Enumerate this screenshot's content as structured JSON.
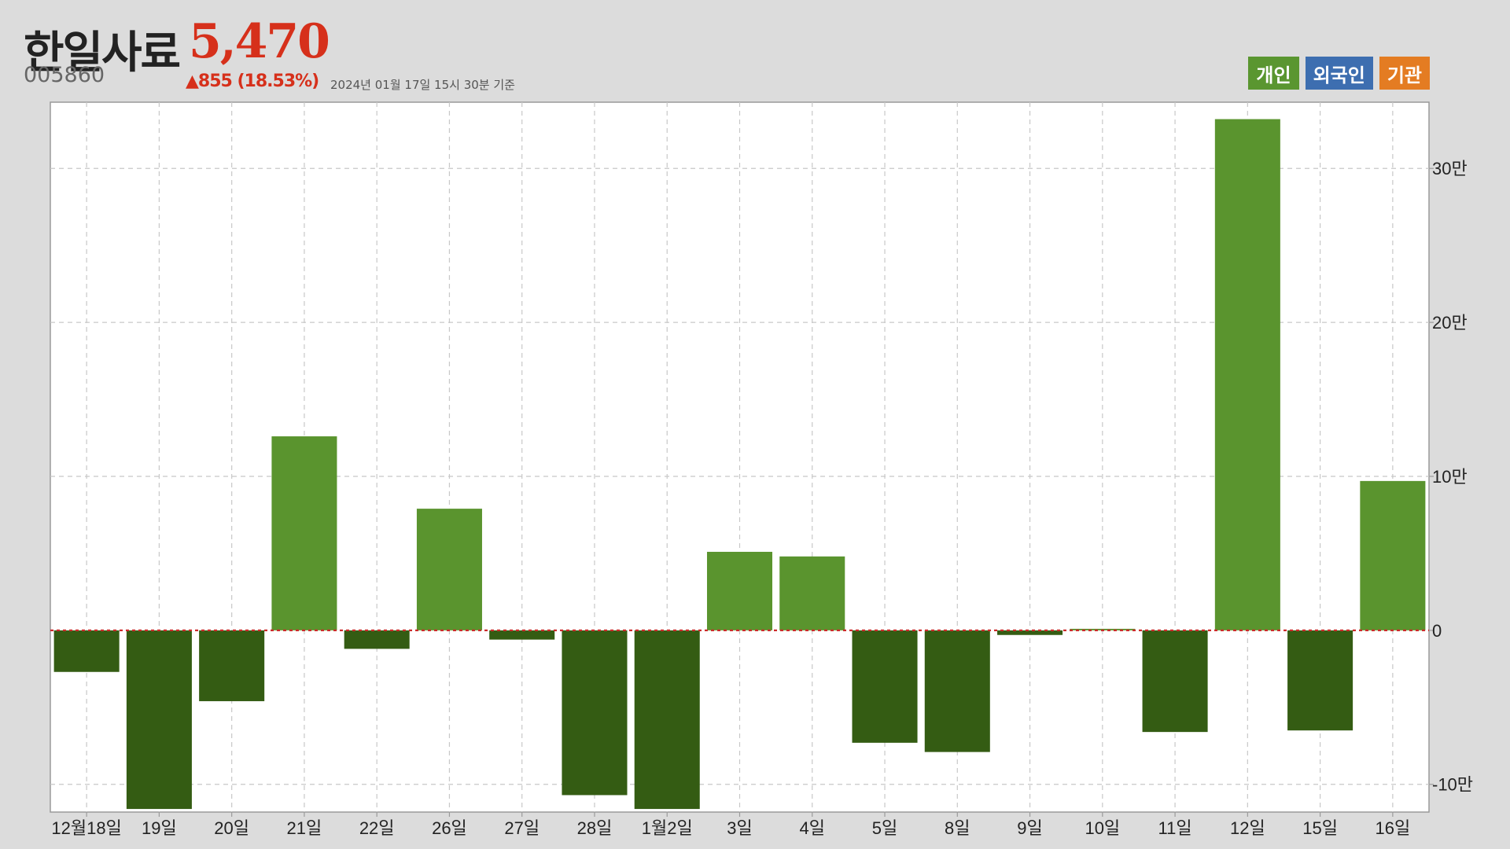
{
  "header": {
    "name": "한일사료",
    "price": "5,470",
    "code": "005860",
    "change": "▲855 (18.53%)",
    "as_of": "2024년 01월 17일 15시 30분 기준"
  },
  "legend": [
    {
      "label": "개인",
      "color": "#5a9630"
    },
    {
      "label": "외국인",
      "color": "#3d6eb0"
    },
    {
      "label": "기관",
      "color": "#e47c22"
    }
  ],
  "colors": {
    "positive_bar": "#5a942e",
    "negative_bar": "#345c13",
    "zero_line": "#cc2b2b",
    "grid": "#c8c8c8"
  },
  "chart_data": {
    "type": "bar",
    "title": "",
    "xlabel": "",
    "ylabel": "",
    "categories": [
      "12월18일",
      "19일",
      "20일",
      "21일",
      "22일",
      "26일",
      "27일",
      "28일",
      "1월2일",
      "3일",
      "4일",
      "5일",
      "8일",
      "9일",
      "10일",
      "11일",
      "12일",
      "15일",
      "16일"
    ],
    "series": [
      {
        "values": [
          -27000,
          -116000,
          -46000,
          126000,
          -12000,
          79000,
          -6000,
          -107000,
          -116000,
          51000,
          48000,
          -73000,
          -79000,
          -3000,
          1000,
          -66000,
          332000,
          -65000,
          97000
        ]
      }
    ],
    "ylim": [
      -118000,
      343000
    ],
    "y_ticks": [
      {
        "value": 300000,
        "label": "30만"
      },
      {
        "value": 200000,
        "label": "20만"
      },
      {
        "value": 100000,
        "label": "10만"
      },
      {
        "value": 0,
        "label": "0"
      },
      {
        "value": -100000,
        "label": "-10만"
      }
    ],
    "grid": true,
    "legend_position": "top-right"
  }
}
